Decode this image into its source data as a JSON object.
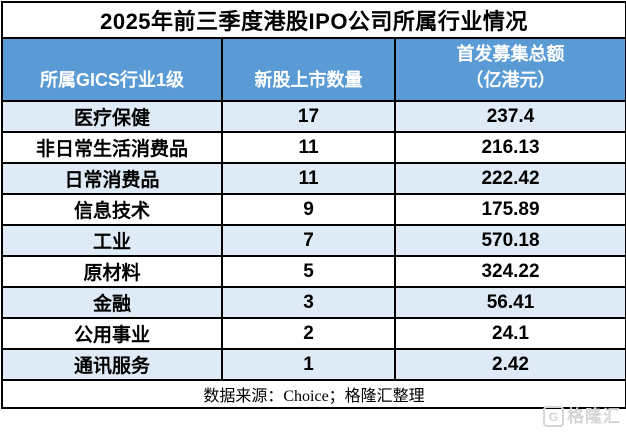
{
  "title": "2025年前三季度港股IPO公司所属行业情况",
  "table": {
    "columns": [
      {
        "label": "所属GICS行业1级"
      },
      {
        "label": "新股上市数量"
      },
      {
        "label": "首发募集总额",
        "sublabel": "（亿港元）"
      }
    ],
    "rows": [
      {
        "industry": "医疗保健",
        "count": "17",
        "amount": "237.4"
      },
      {
        "industry": "非日常生活消费品",
        "count": "11",
        "amount": "216.13"
      },
      {
        "industry": "日常消费品",
        "count": "11",
        "amount": "222.42"
      },
      {
        "industry": "信息技术",
        "count": "9",
        "amount": "175.89"
      },
      {
        "industry": "工业",
        "count": "7",
        "amount": "570.18"
      },
      {
        "industry": "原材料",
        "count": "5",
        "amount": "324.22"
      },
      {
        "industry": "金融",
        "count": "3",
        "amount": "56.41"
      },
      {
        "industry": "公用事业",
        "count": "2",
        "amount": "24.1"
      },
      {
        "industry": "通讯服务",
        "count": "1",
        "amount": "2.42"
      }
    ]
  },
  "footer": {
    "source": "数据来源：Choice；格隆汇整理"
  },
  "watermark": {
    "logo": "G",
    "text": "格隆汇"
  },
  "colors": {
    "header_bg": "#5B9BD5",
    "header_text": "#FFFFFF",
    "row_alt_bg": "#DEEAF6",
    "row_bg": "#FFFFFF",
    "border": "#000000",
    "watermark": "#D5D5D5"
  },
  "chart_data": {
    "type": "table",
    "title": "2025年前三季度港股IPO公司所属行业情况",
    "columns": [
      "所属GICS行业1级",
      "新股上市数量",
      "首发募集总额（亿港元）"
    ],
    "rows": [
      [
        "医疗保健",
        17,
        237.4
      ],
      [
        "非日常生活消费品",
        11,
        216.13
      ],
      [
        "日常消费品",
        11,
        222.42
      ],
      [
        "信息技术",
        9,
        175.89
      ],
      [
        "工业",
        7,
        570.18
      ],
      [
        "原材料",
        5,
        324.22
      ],
      [
        "金融",
        3,
        56.41
      ],
      [
        "公用事业",
        2,
        24.1
      ],
      [
        "通讯服务",
        1,
        2.42
      ]
    ],
    "source": "数据来源：Choice；格隆汇整理",
    "layout_hints": {
      "zebra_striping": true,
      "header_fill": "#5B9BD5",
      "alt_row_fill": "#DEEAF6"
    }
  }
}
